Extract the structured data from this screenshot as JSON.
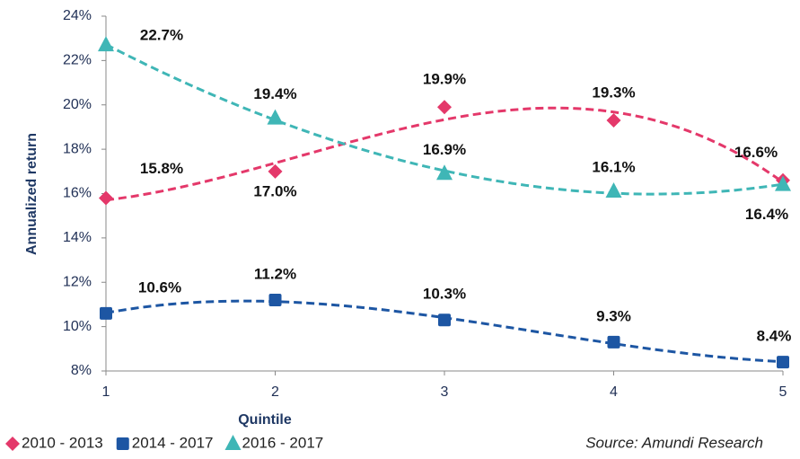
{
  "chart_data": {
    "type": "line",
    "x_label": "Quintile",
    "y_label": "Annualized return",
    "source": "Source: Amundi Research",
    "x": [
      1,
      2,
      3,
      4,
      5
    ],
    "xlim": [
      1,
      5
    ],
    "xticks": [
      1,
      2,
      3,
      4,
      5
    ],
    "ylim": [
      8,
      24
    ],
    "yticks": [
      {
        "value": 8,
        "label": "8%"
      },
      {
        "value": 10,
        "label": "10%"
      },
      {
        "value": 12,
        "label": "12%"
      },
      {
        "value": 14,
        "label": "14%"
      },
      {
        "value": 16,
        "label": "16%"
      },
      {
        "value": 18,
        "label": "18%"
      },
      {
        "value": 20,
        "label": "20%"
      },
      {
        "value": 22,
        "label": "22%"
      },
      {
        "value": 24,
        "label": "24%"
      }
    ],
    "trendline": "polynomial",
    "trendline_order": 3,
    "legend": "bottom-left",
    "series": [
      {
        "name": "2010 - 2013",
        "color": "#e4386a",
        "marker": "diamond",
        "values": [
          15.8,
          17.0,
          19.9,
          19.3,
          16.6
        ],
        "value_labels": [
          "15.8%",
          "17.0%",
          "19.9%",
          "19.3%",
          "16.6%"
        ]
      },
      {
        "name": "2014 - 2017",
        "color": "#1d56a3",
        "marker": "square",
        "values": [
          10.6,
          11.2,
          10.3,
          9.3,
          8.4
        ],
        "value_labels": [
          "10.6%",
          "11.2%",
          "10.3%",
          "9.3%",
          "8.4%"
        ]
      },
      {
        "name": "2016 - 2017",
        "color": "#3fb6b6",
        "marker": "triangle",
        "values": [
          22.7,
          19.4,
          16.9,
          16.1,
          16.4
        ],
        "value_labels": [
          "22.7%",
          "19.4%",
          "16.9%",
          "16.1%",
          "16.4%"
        ]
      }
    ]
  }
}
